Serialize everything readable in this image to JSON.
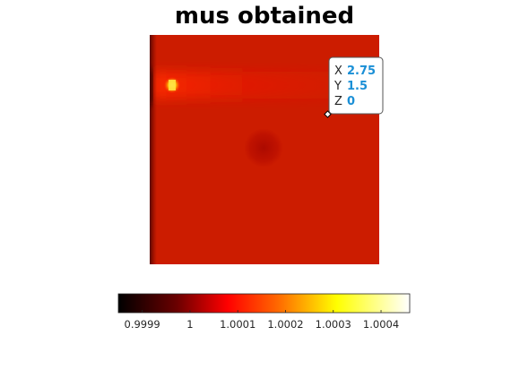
{
  "chart_data": {
    "type": "heatmap",
    "title": "mus obtained",
    "xlabel": "",
    "ylabel": "",
    "colormap": "hot",
    "colorbar": {
      "orientation": "horizontal",
      "placement": "bottom",
      "clim": [
        0.99985,
        1.00046
      ],
      "ticks": [
        0.9999,
        1,
        1.0001,
        1.0002,
        1.0003,
        1.0004
      ],
      "tick_labels": [
        "0.9999",
        "1",
        "1.0001",
        "1.0002",
        "1.0003",
        "1.0004"
      ]
    },
    "background_value": 1.00002,
    "features": [
      {
        "name": "hot spot",
        "value": 1.00043
      },
      {
        "name": "horizontal bright band",
        "value": 1.00005
      },
      {
        "name": "dark left edge",
        "value": 0.99986
      },
      {
        "name": "dark circular region",
        "value": 0.99999
      }
    ],
    "datatip": {
      "x_label": "X",
      "x_value": "2.75",
      "y_label": "Y",
      "y_value": "1.5",
      "z_label": "Z",
      "z_value": "0"
    },
    "axis_visible": false,
    "grid": false
  }
}
